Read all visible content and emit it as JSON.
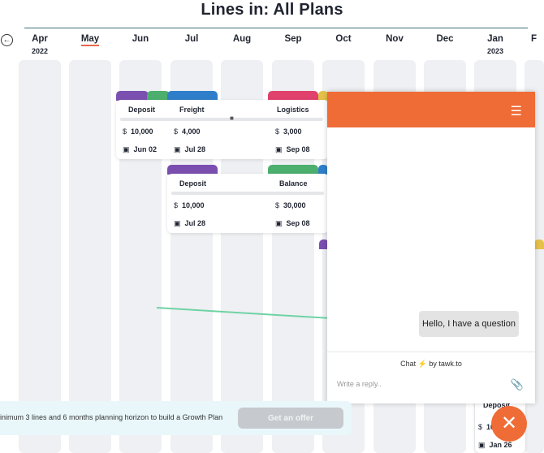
{
  "header": {
    "title": "Lines in: All Plans"
  },
  "timeline": {
    "months": [
      {
        "label": "Apr",
        "year": "2022"
      },
      {
        "label": "May",
        "year": ""
      },
      {
        "label": "Jun",
        "year": ""
      },
      {
        "label": "Jul",
        "year": ""
      },
      {
        "label": "Aug",
        "year": ""
      },
      {
        "label": "Sep",
        "year": ""
      },
      {
        "label": "Oct",
        "year": ""
      },
      {
        "label": "Nov",
        "year": ""
      },
      {
        "label": "Dec",
        "year": ""
      },
      {
        "label": "Jan",
        "year": "2023"
      },
      {
        "label": "F",
        "year": ""
      }
    ],
    "active_month": "May"
  },
  "cards": {
    "row1": {
      "deposit": {
        "label": "Deposit",
        "amount": "10,000",
        "date": "Jun 02"
      },
      "freight": {
        "label": "Freight",
        "amount": "4,000",
        "date": "Jul 28"
      },
      "logistics": {
        "label": "Logistics",
        "amount": "3,000",
        "date": "Sep 08"
      }
    },
    "row2": {
      "deposit": {
        "label": "Deposit",
        "amount": "10,000",
        "date": "Jul 28"
      },
      "balance": {
        "label": "Balance",
        "amount": "30,000",
        "date": "Sep 08"
      }
    },
    "right": {
      "label": "Deposit",
      "amount": "10",
      "date": "Jan 26"
    },
    "currency_symbol": "$"
  },
  "chat": {
    "message": "Hello, I have a question",
    "powered_prefix": "Chat",
    "powered_suffix": "by tawk.to",
    "reply_placeholder": "Write a reply..",
    "header_color": "#ef6c37"
  },
  "banner": {
    "text": "inimum 3 lines and 6 months planning horizon to build a Growth Plan",
    "button": "Get an offer"
  },
  "colors": {
    "purple": "#7b4fb0",
    "green": "#4caf6e",
    "blue": "#2f7ec9",
    "pink": "#e0416d",
    "yellow": "#e6c14a",
    "orange": "#ef6c37"
  }
}
